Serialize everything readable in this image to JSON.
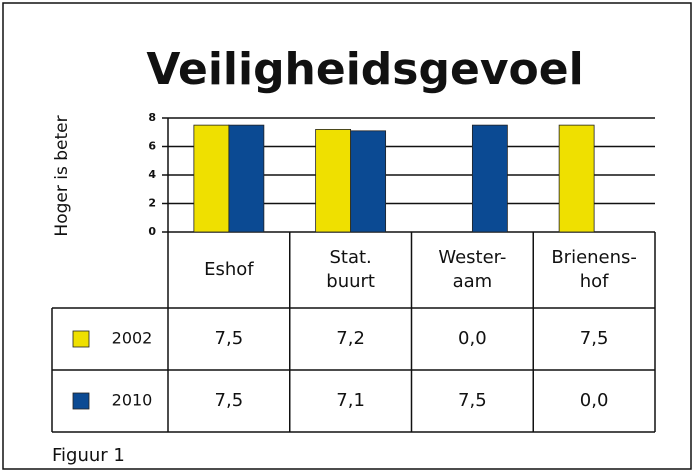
{
  "chart_data": {
    "type": "bar",
    "title": "Veiligheidsgevoel",
    "y_axis_label": "Hoger is beter",
    "categories": [
      "Eshof",
      "Stat.\nbuurt",
      "Wester-\naam",
      "Brienens-\nhof"
    ],
    "series": [
      {
        "name": "2002",
        "color": "#efe000",
        "values": [
          7.5,
          7.2,
          0.0,
          7.5
        ],
        "value_labels": [
          "7,5",
          "7,2",
          "0,0",
          "7,5"
        ]
      },
      {
        "name": "2010",
        "color": "#0b4a93",
        "values": [
          7.5,
          7.1,
          7.5,
          0.0
        ],
        "value_labels": [
          "7,5",
          "7,1",
          "7,5",
          "0,0"
        ]
      }
    ],
    "ylim": [
      0,
      8
    ],
    "yticks": [
      0,
      2,
      4,
      6,
      8
    ],
    "grid": true,
    "caption": "Figuur 1"
  }
}
